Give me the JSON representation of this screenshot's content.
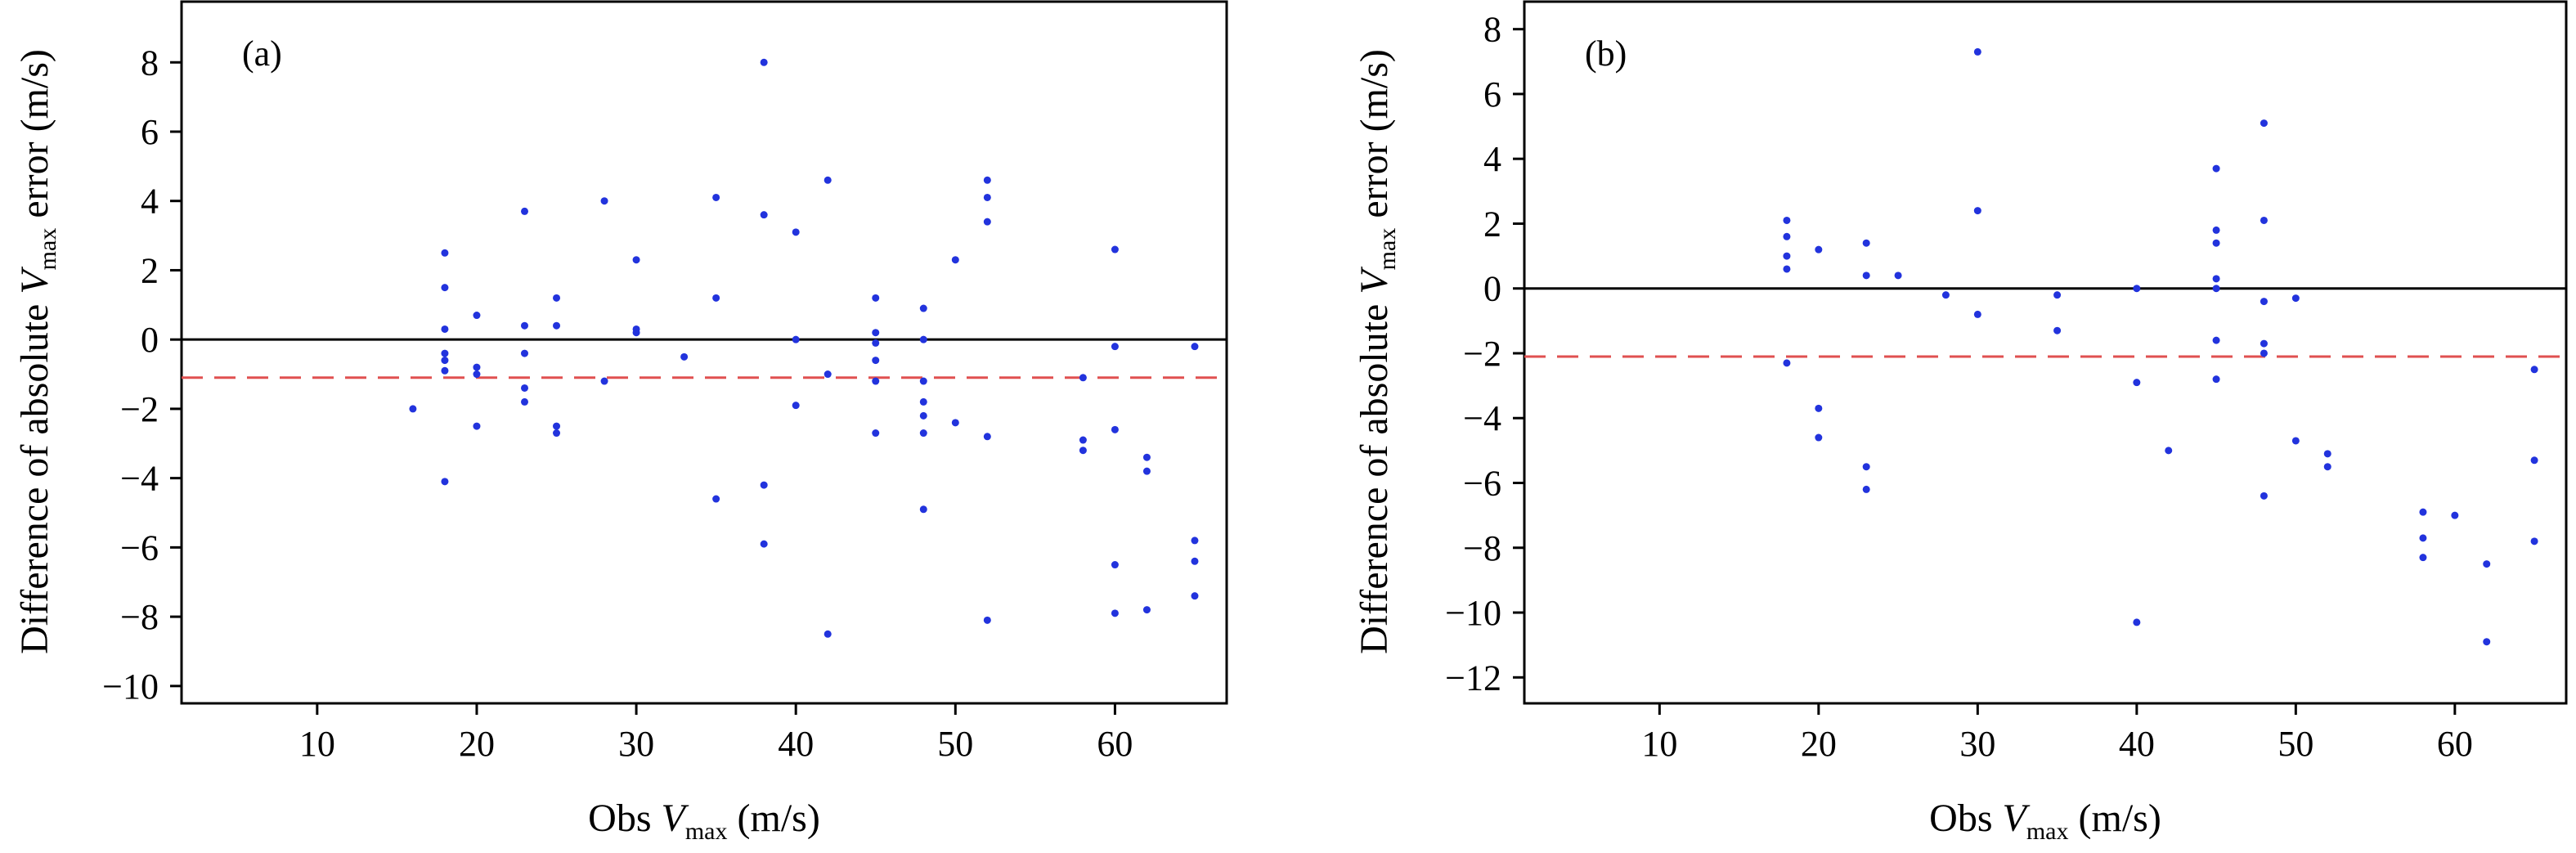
{
  "chart_data": [
    {
      "type": "scatter",
      "panel_label": "(a)",
      "xlabel": {
        "pre": "Obs ",
        "var": "V",
        "sub": "max",
        "post": " (m/s)"
      },
      "ylabel": {
        "pre": "Difference of absolute ",
        "var": "V",
        "sub": "max",
        "post": " error (m/s)"
      },
      "xlim": [
        1.5,
        67
      ],
      "ylim": [
        -10.5,
        9.8
      ],
      "xticks": [
        10,
        20,
        30,
        40,
        50,
        60
      ],
      "xtick_labels": [
        "10",
        "20",
        "30",
        "40",
        "50",
        "60"
      ],
      "yticks": [
        8,
        6,
        4,
        2,
        0,
        -2,
        -4,
        -6,
        -8,
        -10
      ],
      "ytick_labels": [
        "8",
        "6",
        "4",
        "2",
        "0",
        "−2",
        "−4",
        "−6",
        "−8",
        "−10"
      ],
      "zero_line": 0,
      "mean_line": -1.1,
      "point_color": "#2233dd",
      "mean_line_color": "#e05050",
      "points": [
        [
          16,
          -2.0
        ],
        [
          18,
          2.5
        ],
        [
          18,
          1.5
        ],
        [
          18,
          0.3
        ],
        [
          18,
          -0.4
        ],
        [
          18,
          -0.6
        ],
        [
          18,
          -0.9
        ],
        [
          18,
          -4.1
        ],
        [
          20,
          0.7
        ],
        [
          20,
          -0.8
        ],
        [
          20,
          -1.0
        ],
        [
          20,
          -2.5
        ],
        [
          23,
          3.7
        ],
        [
          23,
          0.4
        ],
        [
          23,
          -0.4
        ],
        [
          23,
          -1.4
        ],
        [
          23,
          -1.8
        ],
        [
          25,
          1.2
        ],
        [
          25,
          0.4
        ],
        [
          25,
          -2.5
        ],
        [
          25,
          -2.7
        ],
        [
          28,
          4.0
        ],
        [
          28,
          -1.2
        ],
        [
          30,
          2.3
        ],
        [
          30,
          0.3
        ],
        [
          30,
          0.2
        ],
        [
          33,
          -0.5
        ],
        [
          35,
          4.1
        ],
        [
          35,
          1.2
        ],
        [
          35,
          -4.6
        ],
        [
          38,
          8.0
        ],
        [
          38,
          3.6
        ],
        [
          38,
          -4.2
        ],
        [
          38,
          -5.9
        ],
        [
          40,
          3.1
        ],
        [
          40,
          0.0
        ],
        [
          40,
          -1.9
        ],
        [
          42,
          4.6
        ],
        [
          42,
          -1.0
        ],
        [
          42,
          -8.5
        ],
        [
          45,
          1.2
        ],
        [
          45,
          0.2
        ],
        [
          45,
          -0.1
        ],
        [
          45,
          -0.6
        ],
        [
          45,
          -1.2
        ],
        [
          45,
          -2.7
        ],
        [
          48,
          0.9
        ],
        [
          48,
          0.0
        ],
        [
          48,
          -1.2
        ],
        [
          48,
          -1.8
        ],
        [
          48,
          -2.2
        ],
        [
          48,
          -2.7
        ],
        [
          48,
          -4.9
        ],
        [
          50,
          2.3
        ],
        [
          50,
          -2.4
        ],
        [
          52,
          4.6
        ],
        [
          52,
          4.1
        ],
        [
          52,
          3.4
        ],
        [
          52,
          -2.8
        ],
        [
          52,
          -8.1
        ],
        [
          58,
          -1.1
        ],
        [
          58,
          -2.9
        ],
        [
          58,
          -3.2
        ],
        [
          60,
          2.6
        ],
        [
          60,
          -0.2
        ],
        [
          60,
          -2.6
        ],
        [
          60,
          -6.5
        ],
        [
          60,
          -7.9
        ],
        [
          62,
          -3.4
        ],
        [
          62,
          -3.8
        ],
        [
          62,
          -7.8
        ],
        [
          65,
          -0.2
        ],
        [
          65,
          -5.8
        ],
        [
          65,
          -6.4
        ],
        [
          65,
          -7.4
        ]
      ]
    },
    {
      "type": "scatter",
      "panel_label": "(b)",
      "xlabel": {
        "pre": "Obs ",
        "var": "V",
        "sub": "max",
        "post": " (m/s)"
      },
      "ylabel": {
        "pre": "Difference of absolute ",
        "var": "V",
        "sub": "max",
        "post": " error (m/s)"
      },
      "xlim": [
        1.5,
        67
      ],
      "ylim": [
        -12.8,
        8.9
      ],
      "xticks": [
        10,
        20,
        30,
        40,
        50,
        60
      ],
      "xtick_labels": [
        "10",
        "20",
        "30",
        "40",
        "50",
        "60"
      ],
      "yticks": [
        8,
        6,
        4,
        2,
        0,
        -2,
        -4,
        -6,
        -8,
        -10,
        -12
      ],
      "ytick_labels": [
        "8",
        "6",
        "4",
        "2",
        "0",
        "−2",
        "−4",
        "−6",
        "−8",
        "−10",
        "−12"
      ],
      "zero_line": 0,
      "mean_line": -2.1,
      "point_color": "#2233dd",
      "mean_line_color": "#e05050",
      "points": [
        [
          18,
          2.1
        ],
        [
          18,
          1.6
        ],
        [
          18,
          1.0
        ],
        [
          18,
          0.6
        ],
        [
          18,
          -2.3
        ],
        [
          20,
          1.2
        ],
        [
          20,
          -3.7
        ],
        [
          20,
          -4.6
        ],
        [
          23,
          1.4
        ],
        [
          23,
          0.4
        ],
        [
          23,
          -5.5
        ],
        [
          23,
          -6.2
        ],
        [
          25,
          0.4
        ],
        [
          28,
          -0.2
        ],
        [
          30,
          7.3
        ],
        [
          30,
          2.4
        ],
        [
          30,
          -0.8
        ],
        [
          35,
          -0.2
        ],
        [
          35,
          -1.3
        ],
        [
          40,
          0.0
        ],
        [
          40,
          -2.9
        ],
        [
          40,
          -10.3
        ],
        [
          42,
          -5.0
        ],
        [
          45,
          3.7
        ],
        [
          45,
          1.8
        ],
        [
          45,
          1.4
        ],
        [
          45,
          0.3
        ],
        [
          45,
          0.0
        ],
        [
          45,
          -1.6
        ],
        [
          45,
          -2.8
        ],
        [
          48,
          5.1
        ],
        [
          48,
          2.1
        ],
        [
          48,
          -0.4
        ],
        [
          48,
          -1.7
        ],
        [
          48,
          -2.0
        ],
        [
          48,
          -6.4
        ],
        [
          50,
          -0.3
        ],
        [
          50,
          -4.7
        ],
        [
          52,
          -5.1
        ],
        [
          52,
          -5.5
        ],
        [
          58,
          -6.9
        ],
        [
          58,
          -7.7
        ],
        [
          58,
          -8.3
        ],
        [
          60,
          -7.0
        ],
        [
          62,
          -8.5
        ],
        [
          62,
          -10.9
        ],
        [
          65,
          -2.5
        ],
        [
          65,
          -5.3
        ],
        [
          65,
          -7.8
        ]
      ]
    }
  ]
}
